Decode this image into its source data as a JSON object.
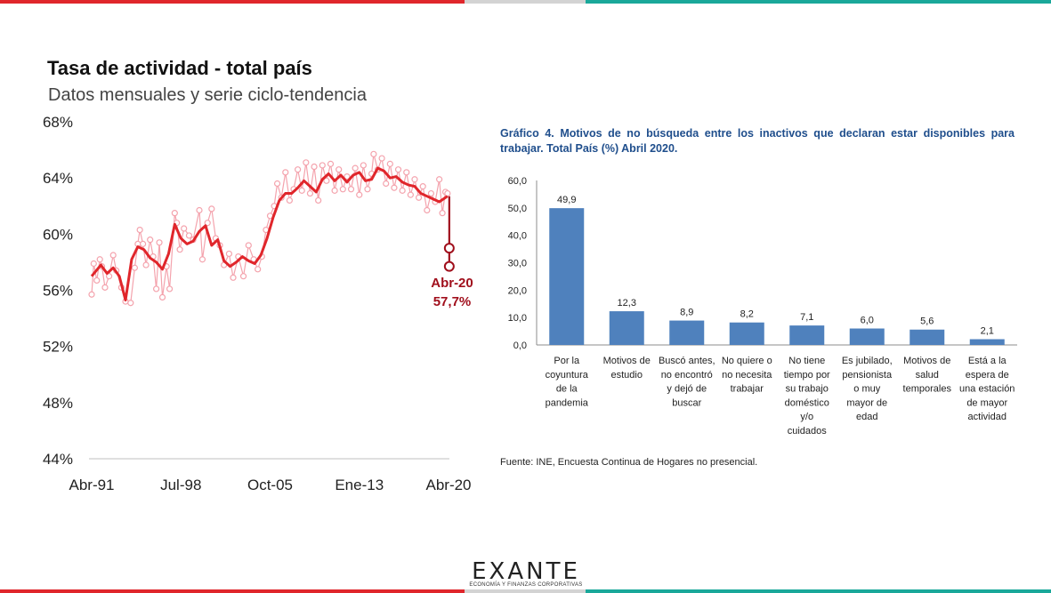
{
  "colors": {
    "brand_red": "#e0262b",
    "brand_grey": "#d3d3d3",
    "brand_teal": "#1aa89a",
    "monthly_series": "#f4a3ad",
    "trend_series": "#e0262b",
    "drop_series": "#a00f1c",
    "bar_fill": "#4f81bd",
    "right_title": "#1f4e8c"
  },
  "left_chart": {
    "title": "Tasa de actividad - total país",
    "subtitle": "Datos mensuales y serie ciclo-tendencia",
    "annotation_label": "Abr-20",
    "annotation_value": "57,7%",
    "y_tick_labels": [
      "68%",
      "64%",
      "60%",
      "56%",
      "52%",
      "48%",
      "44%"
    ],
    "x_tick_labels": [
      "Abr-91",
      "Jul-98",
      "Oct-05",
      "Ene-13",
      "Abr-20"
    ]
  },
  "right_chart": {
    "title": "Gráfico 4. Motivos de no búsqueda entre los inactivos que declaran estar disponibles para trabajar. Total País (%) Abril 2020.",
    "y_tick_labels": [
      "60,0",
      "50,0",
      "40,0",
      "30,0",
      "20,0",
      "10,0",
      "0,0"
    ],
    "value_labels": [
      "49,9",
      "12,3",
      "8,9",
      "8,2",
      "7,1",
      "6,0",
      "5,6",
      "2,1"
    ],
    "category_lines": [
      [
        "Por la",
        "coyuntura",
        "de la",
        "pandemia"
      ],
      [
        "Motivos de",
        "estudio"
      ],
      [
        "Buscó antes,",
        "no encontró",
        "y dejó de",
        "buscar"
      ],
      [
        "No quiere o",
        "no necesita",
        "trabajar"
      ],
      [
        "No tiene",
        "tiempo por",
        "su trabajo",
        "doméstico",
        "y/o",
        "cuidados"
      ],
      [
        "Es jubilado,",
        "pensionista",
        "o muy",
        "mayor de",
        "edad"
      ],
      [
        "Motivos de",
        "salud",
        "temporales"
      ],
      [
        "Está a la",
        "espera de",
        "una estación",
        "de mayor",
        "actividad"
      ]
    ],
    "source": "Fuente: INE, Encuesta Continua de Hogares no presencial."
  },
  "logo": {
    "word": "EXANTE",
    "tagline": "ECONOMÍA Y FINANZAS CORPORATIVAS"
  },
  "chart_data": [
    {
      "type": "line",
      "title": "Tasa de actividad - total país",
      "subtitle": "Datos mensuales y serie ciclo-tendencia",
      "xlabel": "",
      "ylabel": "",
      "x_range": [
        "Abr-91",
        "Abr-20"
      ],
      "ylim": [
        44,
        68
      ],
      "y_unit": "%",
      "grid": false,
      "series": [
        {
          "style": "line",
          "points": [
            [
              "1991-04",
              57.0
            ],
            [
              "1992-01",
              57.8
            ],
            [
              "1992-07",
              57.2
            ],
            [
              "1993-01",
              57.6
            ],
            [
              "1993-07",
              57.0
            ],
            [
              "1994-01",
              55.3
            ],
            [
              "1994-07",
              58.2
            ],
            [
              "1995-01",
              59.1
            ],
            [
              "1995-07",
              58.9
            ],
            [
              "1996-01",
              58.3
            ],
            [
              "1996-07",
              58.0
            ],
            [
              "1997-01",
              57.5
            ],
            [
              "1997-07",
              58.6
            ],
            [
              "1998-01",
              60.7
            ],
            [
              "1998-07",
              59.7
            ],
            [
              "1999-01",
              59.3
            ],
            [
              "1999-07",
              59.5
            ],
            [
              "2000-01",
              60.2
            ],
            [
              "2000-07",
              60.6
            ],
            [
              "2001-01",
              59.2
            ],
            [
              "2001-07",
              59.6
            ],
            [
              "2002-01",
              58.1
            ],
            [
              "2002-07",
              57.7
            ],
            [
              "2003-01",
              58.0
            ],
            [
              "2003-07",
              58.4
            ],
            [
              "2004-01",
              58.1
            ],
            [
              "2004-07",
              57.9
            ],
            [
              "2005-01",
              58.5
            ],
            [
              "2005-07",
              59.7
            ],
            [
              "2006-01",
              61.2
            ],
            [
              "2006-07",
              62.4
            ],
            [
              "2007-01",
              62.9
            ],
            [
              "2007-07",
              62.9
            ],
            [
              "2008-01",
              63.3
            ],
            [
              "2008-07",
              63.8
            ],
            [
              "2009-01",
              63.4
            ],
            [
              "2009-07",
              63.0
            ],
            [
              "2010-01",
              63.9
            ],
            [
              "2010-07",
              64.3
            ],
            [
              "2011-01",
              63.8
            ],
            [
              "2011-07",
              64.2
            ],
            [
              "2012-01",
              63.7
            ],
            [
              "2012-07",
              64.2
            ],
            [
              "2013-01",
              64.4
            ],
            [
              "2013-07",
              63.8
            ],
            [
              "2014-01",
              63.9
            ],
            [
              "2014-07",
              64.7
            ],
            [
              "2015-01",
              64.5
            ],
            [
              "2015-07",
              64.0
            ],
            [
              "2016-01",
              64.1
            ],
            [
              "2016-07",
              63.7
            ],
            [
              "2017-01",
              63.5
            ],
            [
              "2017-07",
              63.4
            ],
            [
              "2018-01",
              62.9
            ],
            [
              "2018-07",
              62.7
            ],
            [
              "2019-01",
              62.5
            ],
            [
              "2019-07",
              62.3
            ],
            [
              "2020-01",
              62.6
            ],
            [
              "2020-03",
              62.7
            ]
          ]
        },
        {
          "style": "scatter",
          "points": [
            [
              "1991-04",
              55.7
            ],
            [
              "1991-06",
              57.9
            ],
            [
              "1991-09",
              56.7
            ],
            [
              "1991-12",
              58.2
            ],
            [
              "1992-02",
              57.7
            ],
            [
              "1992-05",
              56.2
            ],
            [
              "1992-09",
              57.0
            ],
            [
              "1993-01",
              58.5
            ],
            [
              "1993-04",
              57.4
            ],
            [
              "1993-09",
              56.2
            ],
            [
              "1994-01",
              55.2
            ],
            [
              "1994-06",
              55.1
            ],
            [
              "1994-10",
              57.6
            ],
            [
              "1995-01",
              59.3
            ],
            [
              "1995-03",
              60.3
            ],
            [
              "1995-06",
              59.3
            ],
            [
              "1995-09",
              57.8
            ],
            [
              "1996-01",
              59.6
            ],
            [
              "1996-04",
              58.4
            ],
            [
              "1996-07",
              56.1
            ],
            [
              "1996-10",
              59.4
            ],
            [
              "1997-01",
              55.5
            ],
            [
              "1997-05",
              57.7
            ],
            [
              "1997-08",
              56.1
            ],
            [
              "1998-01",
              61.5
            ],
            [
              "1998-03",
              60.8
            ],
            [
              "1998-06",
              58.9
            ],
            [
              "1998-10",
              60.4
            ],
            [
              "1999-03",
              59.9
            ],
            [
              "1999-07",
              59.6
            ],
            [
              "2000-01",
              61.7
            ],
            [
              "2000-04",
              58.2
            ],
            [
              "2000-09",
              60.8
            ],
            [
              "2001-01",
              61.8
            ],
            [
              "2001-05",
              59.7
            ],
            [
              "2001-09",
              59.2
            ],
            [
              "2002-01",
              57.8
            ],
            [
              "2002-06",
              58.6
            ],
            [
              "2002-10",
              56.9
            ],
            [
              "2003-03",
              58.4
            ],
            [
              "2003-08",
              57.0
            ],
            [
              "2004-01",
              59.2
            ],
            [
              "2004-06",
              58.2
            ],
            [
              "2004-10",
              57.5
            ],
            [
              "2005-02",
              58.4
            ],
            [
              "2005-06",
              60.3
            ],
            [
              "2005-10",
              61.3
            ],
            [
              "2006-02",
              62.0
            ],
            [
              "2006-05",
              63.6
            ],
            [
              "2006-09",
              62.6
            ],
            [
              "2007-01",
              64.4
            ],
            [
              "2007-05",
              62.4
            ],
            [
              "2007-09",
              63.2
            ],
            [
              "2008-01",
              64.6
            ],
            [
              "2008-05",
              63.1
            ],
            [
              "2008-09",
              65.1
            ],
            [
              "2009-01",
              62.9
            ],
            [
              "2009-05",
              64.8
            ],
            [
              "2009-09",
              62.4
            ],
            [
              "2010-01",
              64.9
            ],
            [
              "2010-05",
              63.8
            ],
            [
              "2010-09",
              65.0
            ],
            [
              "2011-01",
              63.1
            ],
            [
              "2011-05",
              64.6
            ],
            [
              "2011-09",
              63.2
            ],
            [
              "2012-01",
              64.1
            ],
            [
              "2012-05",
              63.2
            ],
            [
              "2012-09",
              64.7
            ],
            [
              "2013-01",
              62.8
            ],
            [
              "2013-05",
              64.9
            ],
            [
              "2013-09",
              63.2
            ],
            [
              "2014-01",
              64.3
            ],
            [
              "2014-03",
              65.7
            ],
            [
              "2014-07",
              64.6
            ],
            [
              "2014-11",
              65.4
            ],
            [
              "2015-03",
              63.6
            ],
            [
              "2015-07",
              65.0
            ],
            [
              "2015-11",
              63.3
            ],
            [
              "2016-03",
              64.6
            ],
            [
              "2016-07",
              63.1
            ],
            [
              "2016-11",
              64.4
            ],
            [
              "2017-03",
              62.8
            ],
            [
              "2017-07",
              63.9
            ],
            [
              "2017-11",
              62.6
            ],
            [
              "2018-03",
              63.4
            ],
            [
              "2018-07",
              61.7
            ],
            [
              "2018-11",
              62.9
            ],
            [
              "2019-03",
              62.3
            ],
            [
              "2019-07",
              63.9
            ],
            [
              "2019-10",
              61.5
            ],
            [
              "2020-01",
              63.0
            ],
            [
              "2020-03",
              62.9
            ]
          ]
        },
        {
          "style": "line-markers",
          "points": [
            [
              "2020-03",
              62.7
            ],
            [
              "2020-04",
              59.0
            ],
            [
              "2020-04",
              57.7
            ]
          ]
        }
      ]
    },
    {
      "type": "bar",
      "title": "Gráfico 4. Motivos de no búsqueda entre los inactivos que declaran estar disponibles para trabajar. Total País (%) Abril 2020.",
      "categories": [
        "Por la coyuntura de la pandemia",
        "Motivos de estudio",
        "Buscó antes, no encontró y dejó de buscar",
        "No quiere o no necesita trabajar",
        "No tiene tiempo por su trabajo doméstico y/o cuidados",
        "Es jubilado, pensionista o muy mayor de edad",
        "Motivos de salud temporales",
        "Está a la espera de una estación de mayor actividad"
      ],
      "values": [
        49.9,
        12.3,
        8.9,
        8.2,
        7.1,
        6.0,
        5.6,
        2.1
      ],
      "ylim": [
        0,
        60
      ],
      "grid": false,
      "xlabel": "",
      "ylabel": ""
    }
  ]
}
